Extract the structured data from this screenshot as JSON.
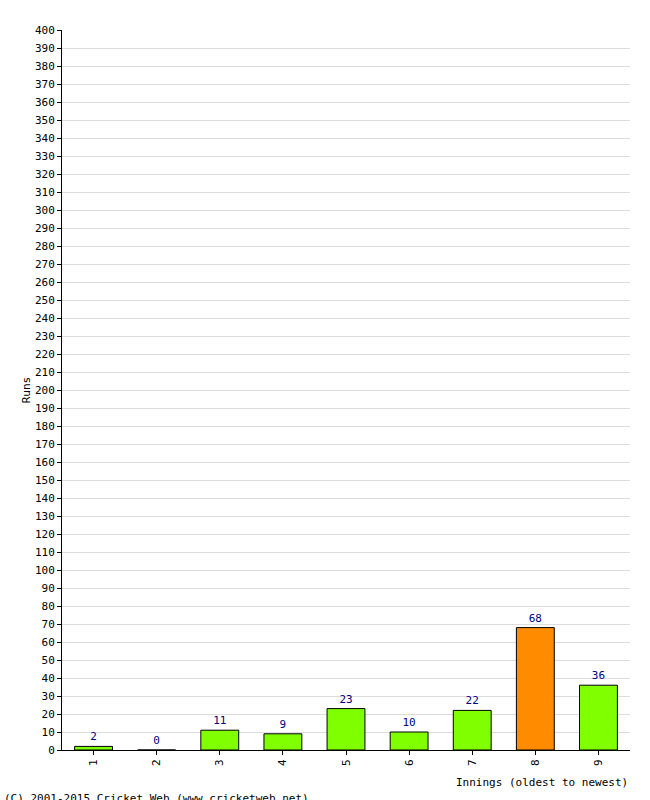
{
  "chart_data": {
    "type": "bar",
    "x_label": "Innings (oldest to newest)",
    "y_label": "Runs",
    "source": "(C) 2001-2015 Cricket Web (www.cricketweb.net)",
    "categories": [
      "1",
      "2",
      "3",
      "4",
      "5",
      "6",
      "7",
      "8",
      "9"
    ],
    "values": [
      2,
      0,
      11,
      9,
      23,
      10,
      22,
      68,
      36
    ],
    "colors": [
      "#80ff00",
      "#80ff00",
      "#80ff00",
      "#80ff00",
      "#80ff00",
      "#80ff00",
      "#80ff00",
      "#ff8c00",
      "#80ff00"
    ],
    "ylim": [
      0,
      400
    ],
    "yticks": [
      0,
      10,
      20,
      30,
      40,
      50,
      60,
      70,
      80,
      90,
      100,
      110,
      120,
      130,
      140,
      150,
      160,
      170,
      180,
      190,
      200,
      210,
      220,
      230,
      240,
      250,
      260,
      270,
      280,
      290,
      300,
      310,
      320,
      330,
      340,
      350,
      360,
      370,
      380,
      390,
      400
    ],
    "grid": true,
    "data_labels": true
  }
}
